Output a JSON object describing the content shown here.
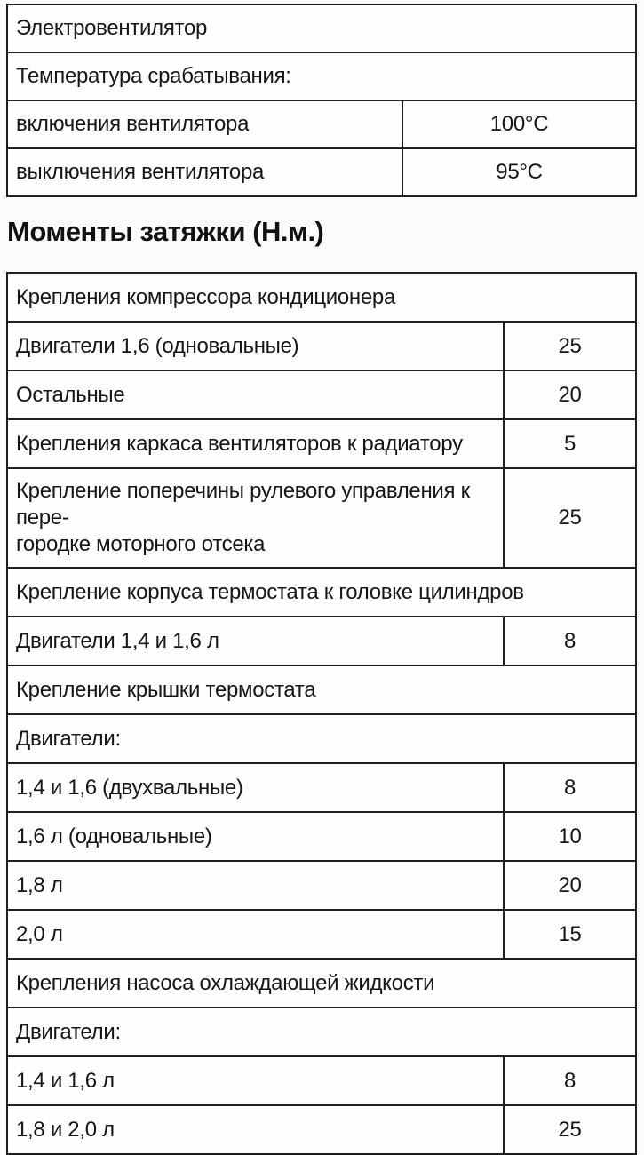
{
  "page": {
    "background": "#fbfbf9",
    "ink_color": "#161616",
    "border_color": "#1f1f1f"
  },
  "heading": {
    "text": "Моменты затяжки (Н.м.)"
  },
  "fan_table": {
    "rows": [
      {
        "label": "Электровентилятор"
      },
      {
        "label": "Температура срабатывания:"
      },
      {
        "label": "включения вентилятора",
        "value": "100°С"
      },
      {
        "label": "выключения вентилятора",
        "value": "95°С"
      }
    ]
  },
  "torque_table": {
    "rows": [
      {
        "label": "Крепления компрессора кондиционера"
      },
      {
        "label": "Двигатели 1,6 (одновальные)",
        "value": "25"
      },
      {
        "label": "Остальные",
        "value": "20"
      },
      {
        "label": "Крепления каркаса вентиляторов к радиатору",
        "value": "5"
      },
      {
        "label": "Крепление поперечины рулевого управления к пере-\nгородке моторного отсека",
        "value": "25"
      },
      {
        "label": "Крепление корпуса термостата к головке цилиндров"
      },
      {
        "label": "Двигатели 1,4 и 1,6 л",
        "value": "8"
      },
      {
        "label": "Крепление крышки термостата"
      },
      {
        "label": "Двигатели:"
      },
      {
        "label": "1,4 и 1,6 (двухвальные)",
        "value": "8"
      },
      {
        "label": "1,6 л (одновальные)",
        "value": "10"
      },
      {
        "label": "1,8 л",
        "value": "20"
      },
      {
        "label": "2,0 л",
        "value": "15"
      },
      {
        "label": "Крепления насоса охлаждающей жидкости"
      },
      {
        "label": "Двигатели:"
      },
      {
        "label": "1,4 и 1,6 л",
        "value": "8"
      },
      {
        "label": "1,8 и 2,0 л",
        "value": "25"
      }
    ]
  }
}
